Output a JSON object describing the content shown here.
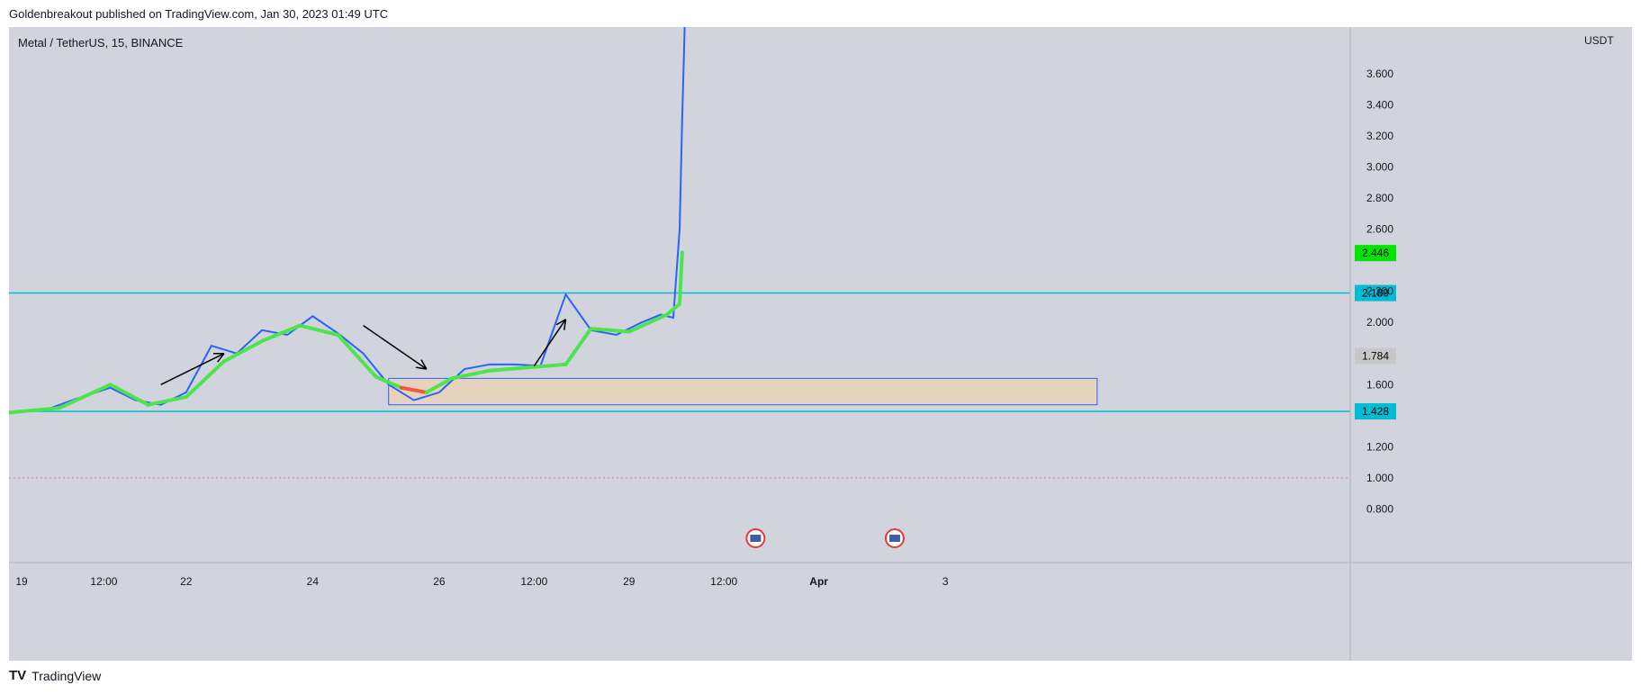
{
  "header": {
    "published": "Goldenbreakout published on TradingView.com, Jan 30, 2023 01:49 UTC"
  },
  "symbol": {
    "label": "Metal / TetherUS, 15, BINANCE"
  },
  "axis": {
    "currency": "USDT"
  },
  "footer": {
    "brand": "TradingView",
    "logo_icon": "tradingview-logo-icon"
  },
  "colors": {
    "background": "#d1d4dc",
    "price_line": "#2962ff",
    "ma_up": "#4ee44e",
    "ma_down": "#f05a3c",
    "resistance": "#00bcd4",
    "support_zone": "#f5d0a9",
    "last_price": "#00e600",
    "ma_label": "#c7c7c7"
  },
  "chart_data": {
    "type": "line",
    "title": "Metal / TetherUS, 15, BINANCE",
    "ylabel": "USDT",
    "ylim": [
      0.6,
      3.9
    ],
    "y_ticks": [
      "0.800",
      "1.000",
      "1.200",
      "1.600",
      "2.000",
      "2.200",
      "2.600",
      "2.800",
      "3.000",
      "3.200",
      "3.400",
      "3.600"
    ],
    "x_ticks": [
      {
        "label": "19",
        "t": 0.1
      },
      {
        "label": "12:00",
        "t": 0.75
      },
      {
        "label": "22",
        "t": 1.4
      },
      {
        "label": "24",
        "t": 2.4
      },
      {
        "label": "26",
        "t": 3.4
      },
      {
        "label": "12:00",
        "t": 4.15
      },
      {
        "label": "29",
        "t": 4.9
      },
      {
        "label": "12:00",
        "t": 5.65
      },
      {
        "label": "Apr",
        "t": 6.4
      },
      {
        "label": "3",
        "t": 7.4
      }
    ],
    "series": [
      {
        "values_t": [
          0,
          0.3,
          0.5,
          0.8,
          1.0,
          1.2,
          1.4,
          1.6,
          1.8,
          2.0,
          2.2,
          2.4,
          2.6,
          2.8,
          3.0,
          3.2,
          3.4,
          3.6,
          3.8,
          4.0,
          4.2,
          4.4,
          4.6,
          4.8,
          5.0,
          5.15,
          5.25,
          5.3,
          5.32,
          5.34
        ],
        "values_p": [
          1.42,
          1.44,
          1.5,
          1.58,
          1.5,
          1.47,
          1.55,
          1.85,
          1.8,
          1.95,
          1.92,
          2.04,
          1.93,
          1.8,
          1.6,
          1.5,
          1.55,
          1.7,
          1.73,
          1.73,
          1.72,
          2.18,
          1.95,
          1.92,
          2.0,
          2.05,
          2.03,
          2.6,
          3.3,
          3.9
        ]
      },
      {
        "values_t": [
          0,
          0.4,
          0.8,
          1.1,
          1.4,
          1.7,
          2.0,
          2.3,
          2.6,
          2.9,
          3.1,
          3.3,
          3.5,
          3.8,
          4.1,
          4.4,
          4.6,
          4.9,
          5.2,
          5.3,
          5.32
        ],
        "values_p": [
          1.42,
          1.45,
          1.6,
          1.47,
          1.52,
          1.75,
          1.88,
          1.98,
          1.92,
          1.65,
          1.58,
          1.55,
          1.64,
          1.69,
          1.71,
          1.73,
          1.96,
          1.94,
          2.05,
          2.12,
          2.45
        ]
      }
    ],
    "levels": [
      {
        "name": "resistance",
        "value": 2.189,
        "label": "2.189"
      },
      {
        "name": "support",
        "value": 1.428,
        "label": "1.428"
      },
      {
        "name": "reference",
        "value": 1.0,
        "label": ""
      }
    ],
    "zone": {
      "low": 1.47,
      "high": 1.64,
      "t_start": 3.0,
      "t_end": 8.6
    },
    "labels": {
      "last_price": "2.446",
      "ma": "1.784",
      "resistance": "2.189",
      "support": "1.428"
    },
    "arrows": [
      {
        "direction": "up",
        "t0": 1.2,
        "p0": 1.6,
        "t1": 1.7,
        "p1": 1.8
      },
      {
        "direction": "down",
        "t0": 2.8,
        "p0": 1.98,
        "t1": 3.3,
        "p1": 1.7
      },
      {
        "direction": "up",
        "t0": 4.15,
        "p0": 1.72,
        "t1": 4.4,
        "p1": 2.02
      }
    ],
    "events": [
      {
        "icon": "us-flag-icon",
        "t": 5.9
      },
      {
        "icon": "us-flag-icon",
        "t": 7.0
      }
    ]
  }
}
